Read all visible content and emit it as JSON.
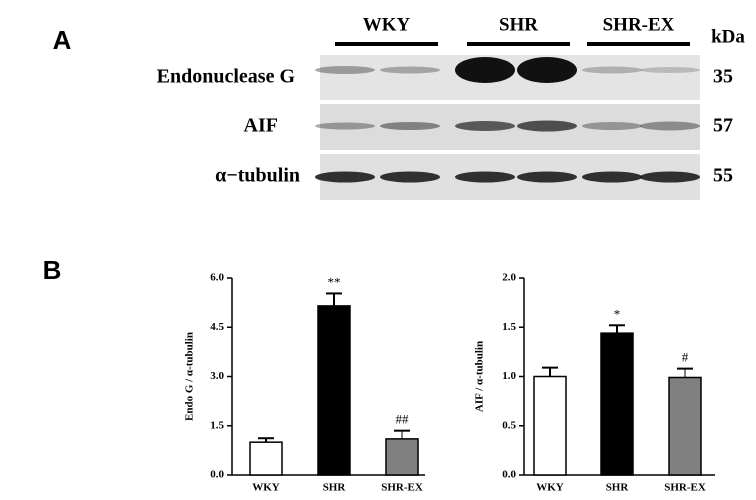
{
  "panels": [
    "A",
    "B"
  ],
  "blot": {
    "groups": [
      "WKY",
      "SHR",
      "SHR-EX"
    ],
    "unit": "kDa",
    "rows": [
      {
        "label": "Endonuclease G",
        "kda": 35
      },
      {
        "label": "AIF",
        "kda": 57
      },
      {
        "label": "α−tubulin",
        "kda": 55
      }
    ]
  },
  "chart_data": [
    {
      "type": "bar",
      "y_label": "Endo G / α-tubulin",
      "categories": [
        "WKY",
        "SHR",
        "SHR-EX"
      ],
      "values": [
        1.0,
        5.15,
        1.1
      ],
      "errors": [
        0.12,
        0.38,
        0.25
      ],
      "annotations": [
        null,
        "**",
        "##"
      ],
      "colors": [
        "#ffffff",
        "#000000",
        "#808080"
      ],
      "ylim": [
        0,
        6
      ],
      "yticks": [
        {
          "value": 0,
          "label": "0.0"
        },
        1.5,
        {
          "value": 3,
          "label": "3.0"
        },
        4.5,
        {
          "value": 6,
          "label": "6.0"
        }
      ]
    },
    {
      "type": "bar",
      "y_label": "AIF / α-tubulin",
      "categories": [
        "WKY",
        "SHR",
        "SHR-EX"
      ],
      "values": [
        1.0,
        1.44,
        0.99
      ],
      "errors": [
        0.09,
        0.08,
        0.09
      ],
      "annotations": [
        null,
        "*",
        "#"
      ],
      "colors": [
        "#ffffff",
        "#000000",
        "#808080"
      ],
      "ylim": [
        0,
        2
      ],
      "yticks": [
        {
          "value": 0,
          "label": "0.0"
        },
        0.5,
        {
          "value": 1,
          "label": "1.0"
        },
        1.5,
        {
          "value": 2,
          "label": "2.0"
        }
      ]
    }
  ]
}
